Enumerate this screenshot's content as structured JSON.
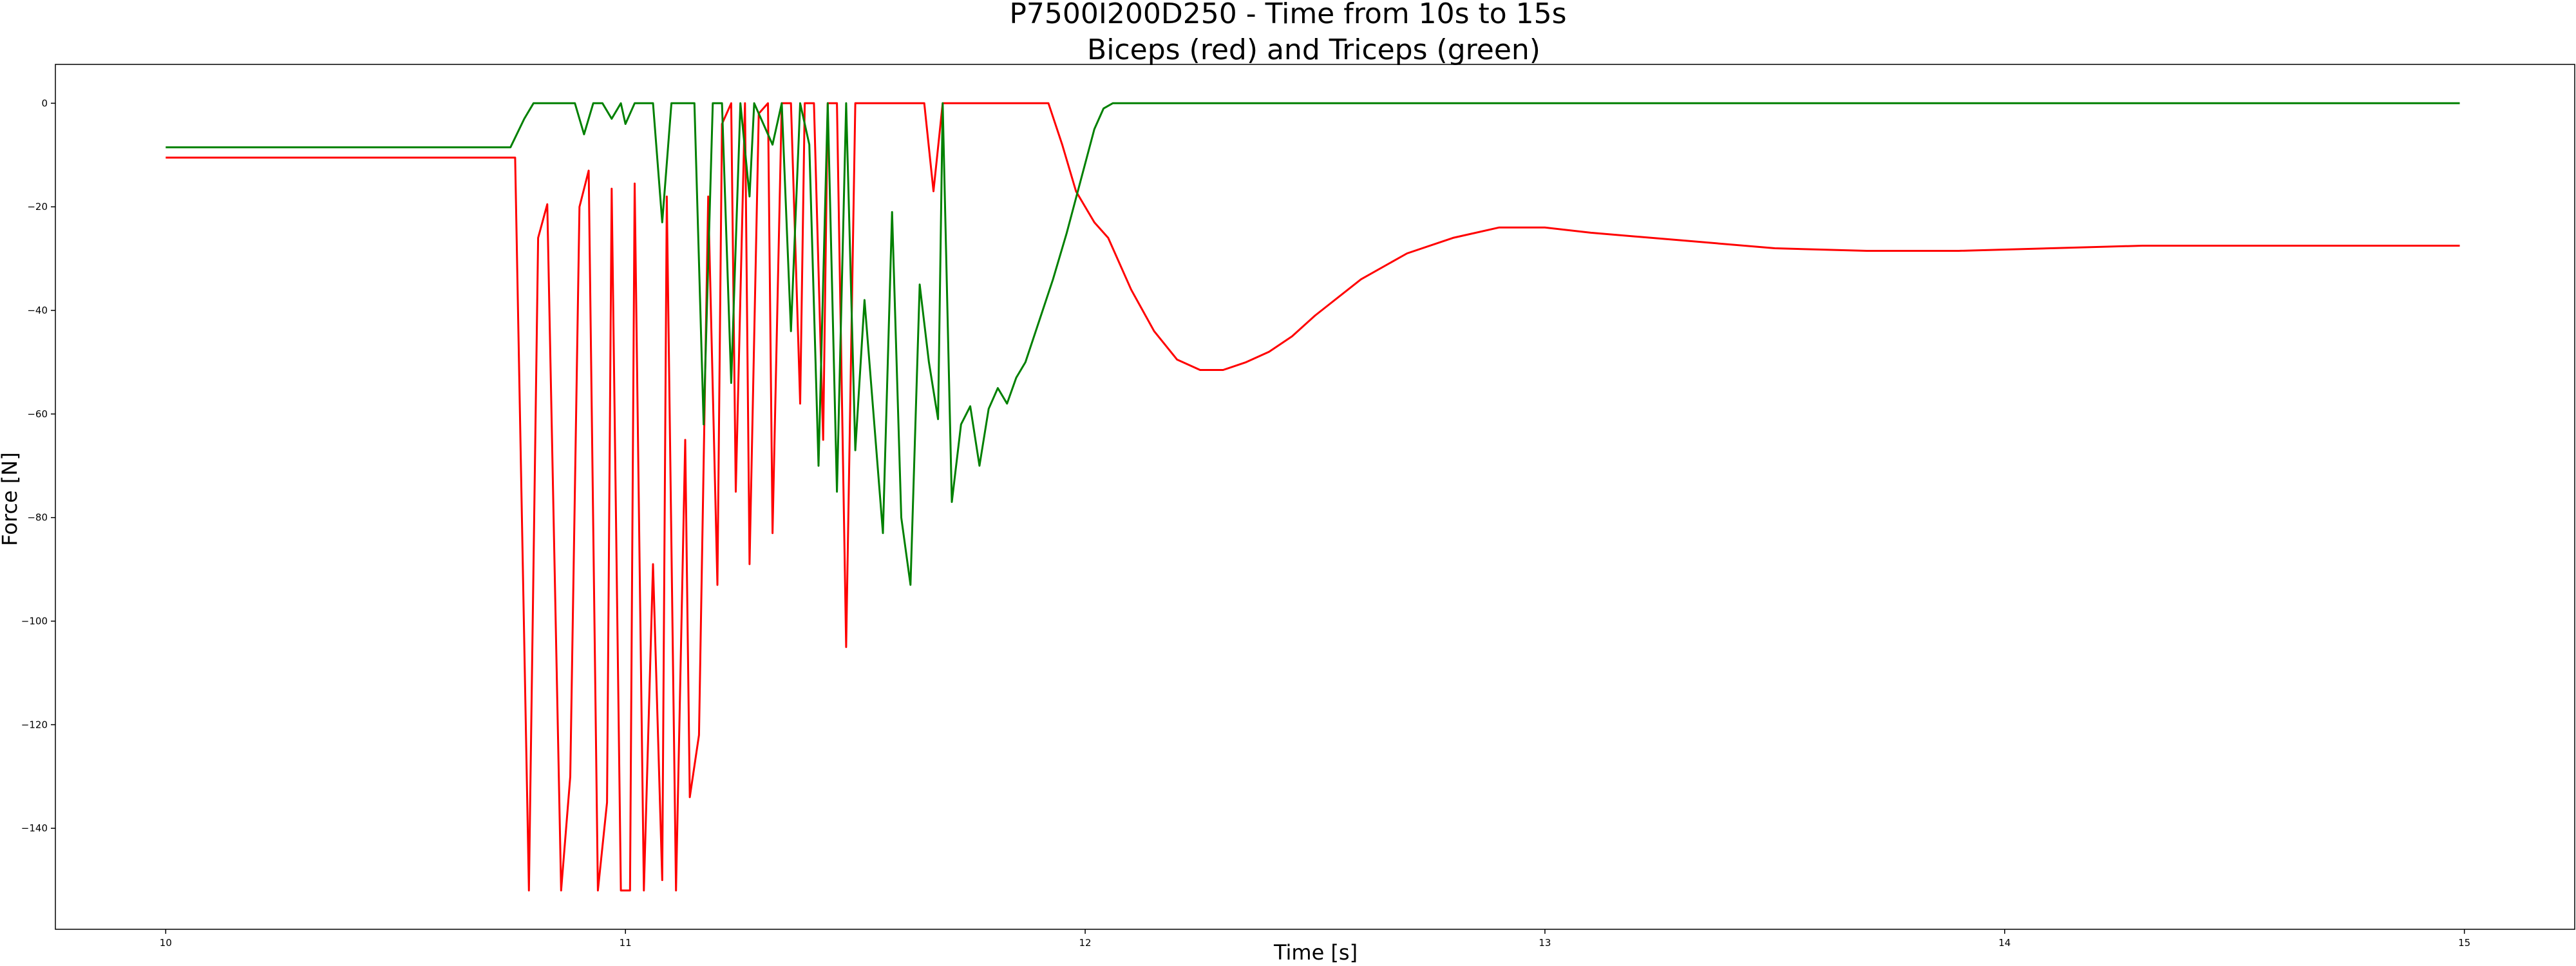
{
  "chart_data": {
    "type": "line",
    "title": "P7500I200D250 - Time from 10s to 15s",
    "subtitle": "Biceps (red) and Triceps (green)",
    "xlabel": "Time [s]",
    "ylabel": "Force [N]",
    "xlim": [
      9.76,
      15.24
    ],
    "ylim": [
      -159.5,
      7.5
    ],
    "xticks": [
      10,
      11,
      12,
      13,
      14,
      15
    ],
    "yticks": [
      0,
      -20,
      -40,
      -60,
      -80,
      -100,
      -120,
      -140
    ],
    "ytick_labels": [
      "0",
      "−20",
      "−40",
      "−60",
      "−80",
      "−100",
      "−120",
      "−140"
    ],
    "grid": false,
    "series": [
      {
        "color": "#ff0000",
        "points": [
          [
            10.0,
            -10.5
          ],
          [
            10.76,
            -10.5
          ],
          [
            10.79,
            -152
          ],
          [
            10.81,
            -26
          ],
          [
            10.83,
            -19.5
          ],
          [
            10.86,
            -152
          ],
          [
            10.88,
            -130
          ],
          [
            10.9,
            -20
          ],
          [
            10.92,
            -13
          ],
          [
            10.94,
            -152
          ],
          [
            10.96,
            -135
          ],
          [
            10.97,
            -16.5
          ],
          [
            10.99,
            -152
          ],
          [
            11.01,
            -152
          ],
          [
            11.02,
            -15.5
          ],
          [
            11.04,
            -152
          ],
          [
            11.06,
            -89
          ],
          [
            11.08,
            -150
          ],
          [
            11.09,
            -18
          ],
          [
            11.11,
            -152
          ],
          [
            11.13,
            -65
          ],
          [
            11.14,
            -134
          ],
          [
            11.16,
            -122
          ],
          [
            11.18,
            -18
          ],
          [
            11.2,
            -93
          ],
          [
            11.21,
            -4
          ],
          [
            11.23,
            0
          ],
          [
            11.24,
            -75
          ],
          [
            11.26,
            0
          ],
          [
            11.27,
            -89
          ],
          [
            11.29,
            -2
          ],
          [
            11.31,
            0
          ],
          [
            11.32,
            -83
          ],
          [
            11.34,
            0
          ],
          [
            11.36,
            0
          ],
          [
            11.38,
            -58
          ],
          [
            11.39,
            0
          ],
          [
            11.41,
            0
          ],
          [
            11.43,
            -65
          ],
          [
            11.44,
            0
          ],
          [
            11.46,
            0
          ],
          [
            11.48,
            -105
          ],
          [
            11.5,
            0
          ],
          [
            11.6,
            0
          ],
          [
            11.65,
            0
          ],
          [
            11.67,
            -17
          ],
          [
            11.69,
            0
          ],
          [
            11.8,
            0
          ],
          [
            11.92,
            0
          ],
          [
            11.95,
            -8
          ],
          [
            11.98,
            -17
          ],
          [
            12.02,
            -23
          ],
          [
            12.05,
            -26
          ],
          [
            12.1,
            -36
          ],
          [
            12.15,
            -44
          ],
          [
            12.2,
            -49.5
          ],
          [
            12.25,
            -51.5
          ],
          [
            12.3,
            -51.5
          ],
          [
            12.35,
            -50
          ],
          [
            12.4,
            -48
          ],
          [
            12.45,
            -45
          ],
          [
            12.5,
            -41
          ],
          [
            12.6,
            -34
          ],
          [
            12.7,
            -29
          ],
          [
            12.8,
            -26
          ],
          [
            12.9,
            -24
          ],
          [
            13.0,
            -24
          ],
          [
            13.1,
            -25
          ],
          [
            13.3,
            -26.5
          ],
          [
            13.5,
            -28
          ],
          [
            13.7,
            -28.5
          ],
          [
            13.9,
            -28.5
          ],
          [
            14.1,
            -28
          ],
          [
            14.3,
            -27.5
          ],
          [
            14.5,
            -27.5
          ],
          [
            14.7,
            -27.5
          ],
          [
            14.9,
            -27.5
          ],
          [
            14.99,
            -27.5
          ]
        ]
      },
      {
        "color": "#008000",
        "points": [
          [
            10.0,
            -8.5
          ],
          [
            10.75,
            -8.5
          ],
          [
            10.78,
            -3
          ],
          [
            10.8,
            0
          ],
          [
            10.89,
            0
          ],
          [
            10.91,
            -6
          ],
          [
            10.93,
            0
          ],
          [
            10.95,
            0
          ],
          [
            10.97,
            -3
          ],
          [
            10.99,
            0
          ],
          [
            11.0,
            -4
          ],
          [
            11.02,
            0
          ],
          [
            11.06,
            0
          ],
          [
            11.08,
            -23
          ],
          [
            11.1,
            0
          ],
          [
            11.13,
            0
          ],
          [
            11.15,
            0
          ],
          [
            11.17,
            -62
          ],
          [
            11.19,
            0
          ],
          [
            11.21,
            0
          ],
          [
            11.23,
            -54
          ],
          [
            11.25,
            0
          ],
          [
            11.27,
            -18
          ],
          [
            11.28,
            0
          ],
          [
            11.3,
            -4
          ],
          [
            11.32,
            -8
          ],
          [
            11.34,
            0
          ],
          [
            11.36,
            -44
          ],
          [
            11.38,
            0
          ],
          [
            11.4,
            -8
          ],
          [
            11.42,
            -70
          ],
          [
            11.44,
            0
          ],
          [
            11.46,
            -75
          ],
          [
            11.48,
            0
          ],
          [
            11.5,
            -67
          ],
          [
            11.52,
            -38
          ],
          [
            11.56,
            -83
          ],
          [
            11.58,
            -21
          ],
          [
            11.6,
            -80
          ],
          [
            11.62,
            -93
          ],
          [
            11.64,
            -35
          ],
          [
            11.66,
            -50
          ],
          [
            11.68,
            -61
          ],
          [
            11.69,
            0
          ],
          [
            11.71,
            -77
          ],
          [
            11.73,
            -62
          ],
          [
            11.75,
            -58.5
          ],
          [
            11.77,
            -70
          ],
          [
            11.79,
            -59
          ],
          [
            11.81,
            -55
          ],
          [
            11.83,
            -58
          ],
          [
            11.85,
            -53
          ],
          [
            11.87,
            -50
          ],
          [
            11.9,
            -42
          ],
          [
            11.93,
            -34
          ],
          [
            11.96,
            -25
          ],
          [
            11.99,
            -15
          ],
          [
            12.02,
            -5
          ],
          [
            12.04,
            -1
          ],
          [
            12.06,
            0
          ],
          [
            12.5,
            0
          ],
          [
            13.0,
            0
          ],
          [
            13.5,
            0
          ],
          [
            14.0,
            0
          ],
          [
            14.5,
            0
          ],
          [
            14.99,
            0
          ]
        ]
      }
    ]
  }
}
